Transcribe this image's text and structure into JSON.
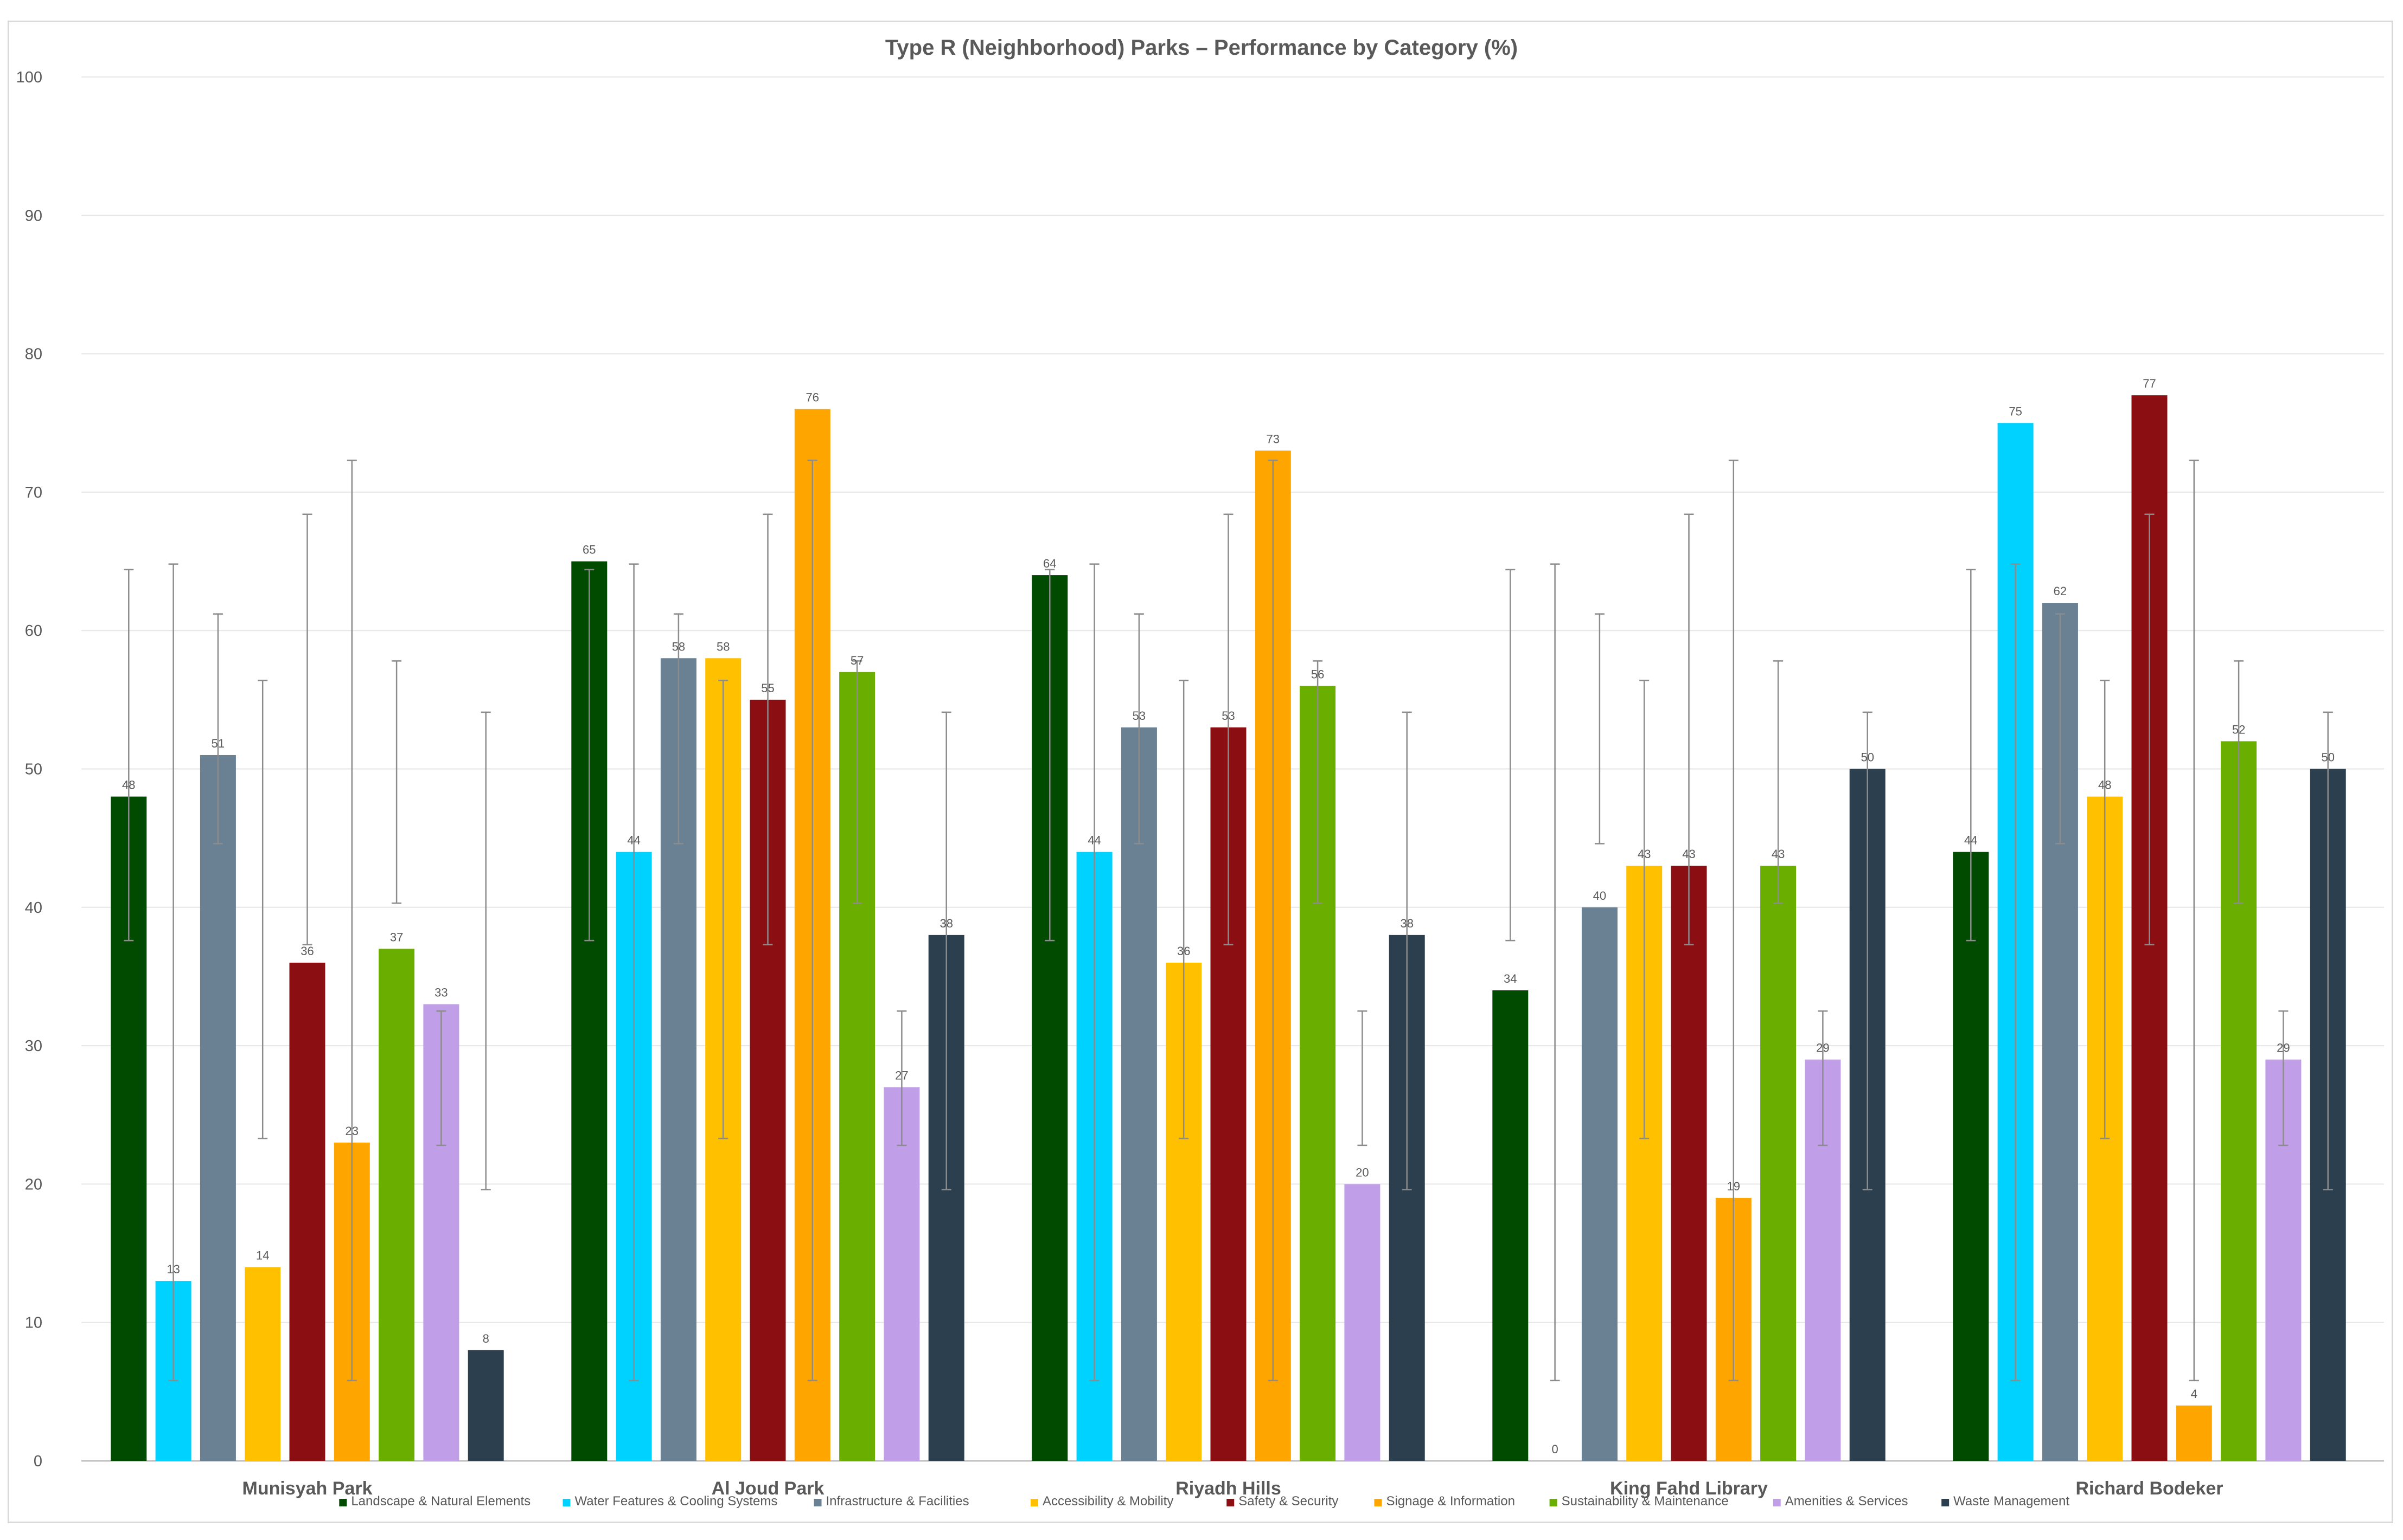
{
  "chart_data": {
    "type": "bar",
    "title": "Type R (Neighborhood) Parks – Performance by Category (%)",
    "xlabel": "",
    "ylabel": "",
    "ylim": [
      0,
      100
    ],
    "yticks": [
      0,
      10,
      20,
      30,
      40,
      50,
      60,
      70,
      80,
      90,
      100
    ],
    "grid": true,
    "legend_position": "bottom",
    "categories": [
      "Munisyah Park",
      "Al Joud Park",
      "Riyadh Hills",
      "King Fahd Library",
      "Richard Bodeker"
    ],
    "series": [
      {
        "name": "Landscape & Natural Elements",
        "color": "#004b00",
        "values": [
          48,
          65,
          64,
          34,
          44
        ],
        "error": [
          37.6,
          64.4
        ]
      },
      {
        "name": "Water Features & Cooling Systems",
        "color": "#00d2ff",
        "values": [
          13,
          44,
          44,
          0,
          75
        ],
        "error": [
          5.8,
          64.8
        ]
      },
      {
        "name": "Infrastructure & Facilities",
        "color": "#6a8093",
        "values": [
          51,
          58,
          53,
          40,
          62
        ],
        "error": [
          44.6,
          61.2
        ]
      },
      {
        "name": "Accessibility & Mobility",
        "color": "#ffc000",
        "values": [
          14,
          58,
          36,
          43,
          48
        ],
        "error": [
          23.3,
          56.4
        ]
      },
      {
        "name": "Safety & Security",
        "color": "#8b0e12",
        "values": [
          36,
          55,
          53,
          43,
          77
        ],
        "error": [
          37.3,
          68.4
        ]
      },
      {
        "name": "Signage & Information",
        "color": "#ffa500",
        "values": [
          23,
          76,
          73,
          19,
          4
        ],
        "error": [
          5.8,
          72.3
        ]
      },
      {
        "name": "Sustainability & Maintenance",
        "color": "#6aaf00",
        "values": [
          37,
          57,
          56,
          43,
          52
        ],
        "error": [
          40.3,
          57.8
        ]
      },
      {
        "name": "Amenities & Services",
        "color": "#c19fe8",
        "values": [
          33,
          27,
          20,
          29,
          29
        ],
        "error": [
          22.8,
          32.5
        ]
      },
      {
        "name": "Waste Management",
        "color": "#2b3f4e",
        "values": [
          8,
          38,
          38,
          50,
          50
        ],
        "error": [
          19.6,
          54.1
        ]
      }
    ]
  }
}
